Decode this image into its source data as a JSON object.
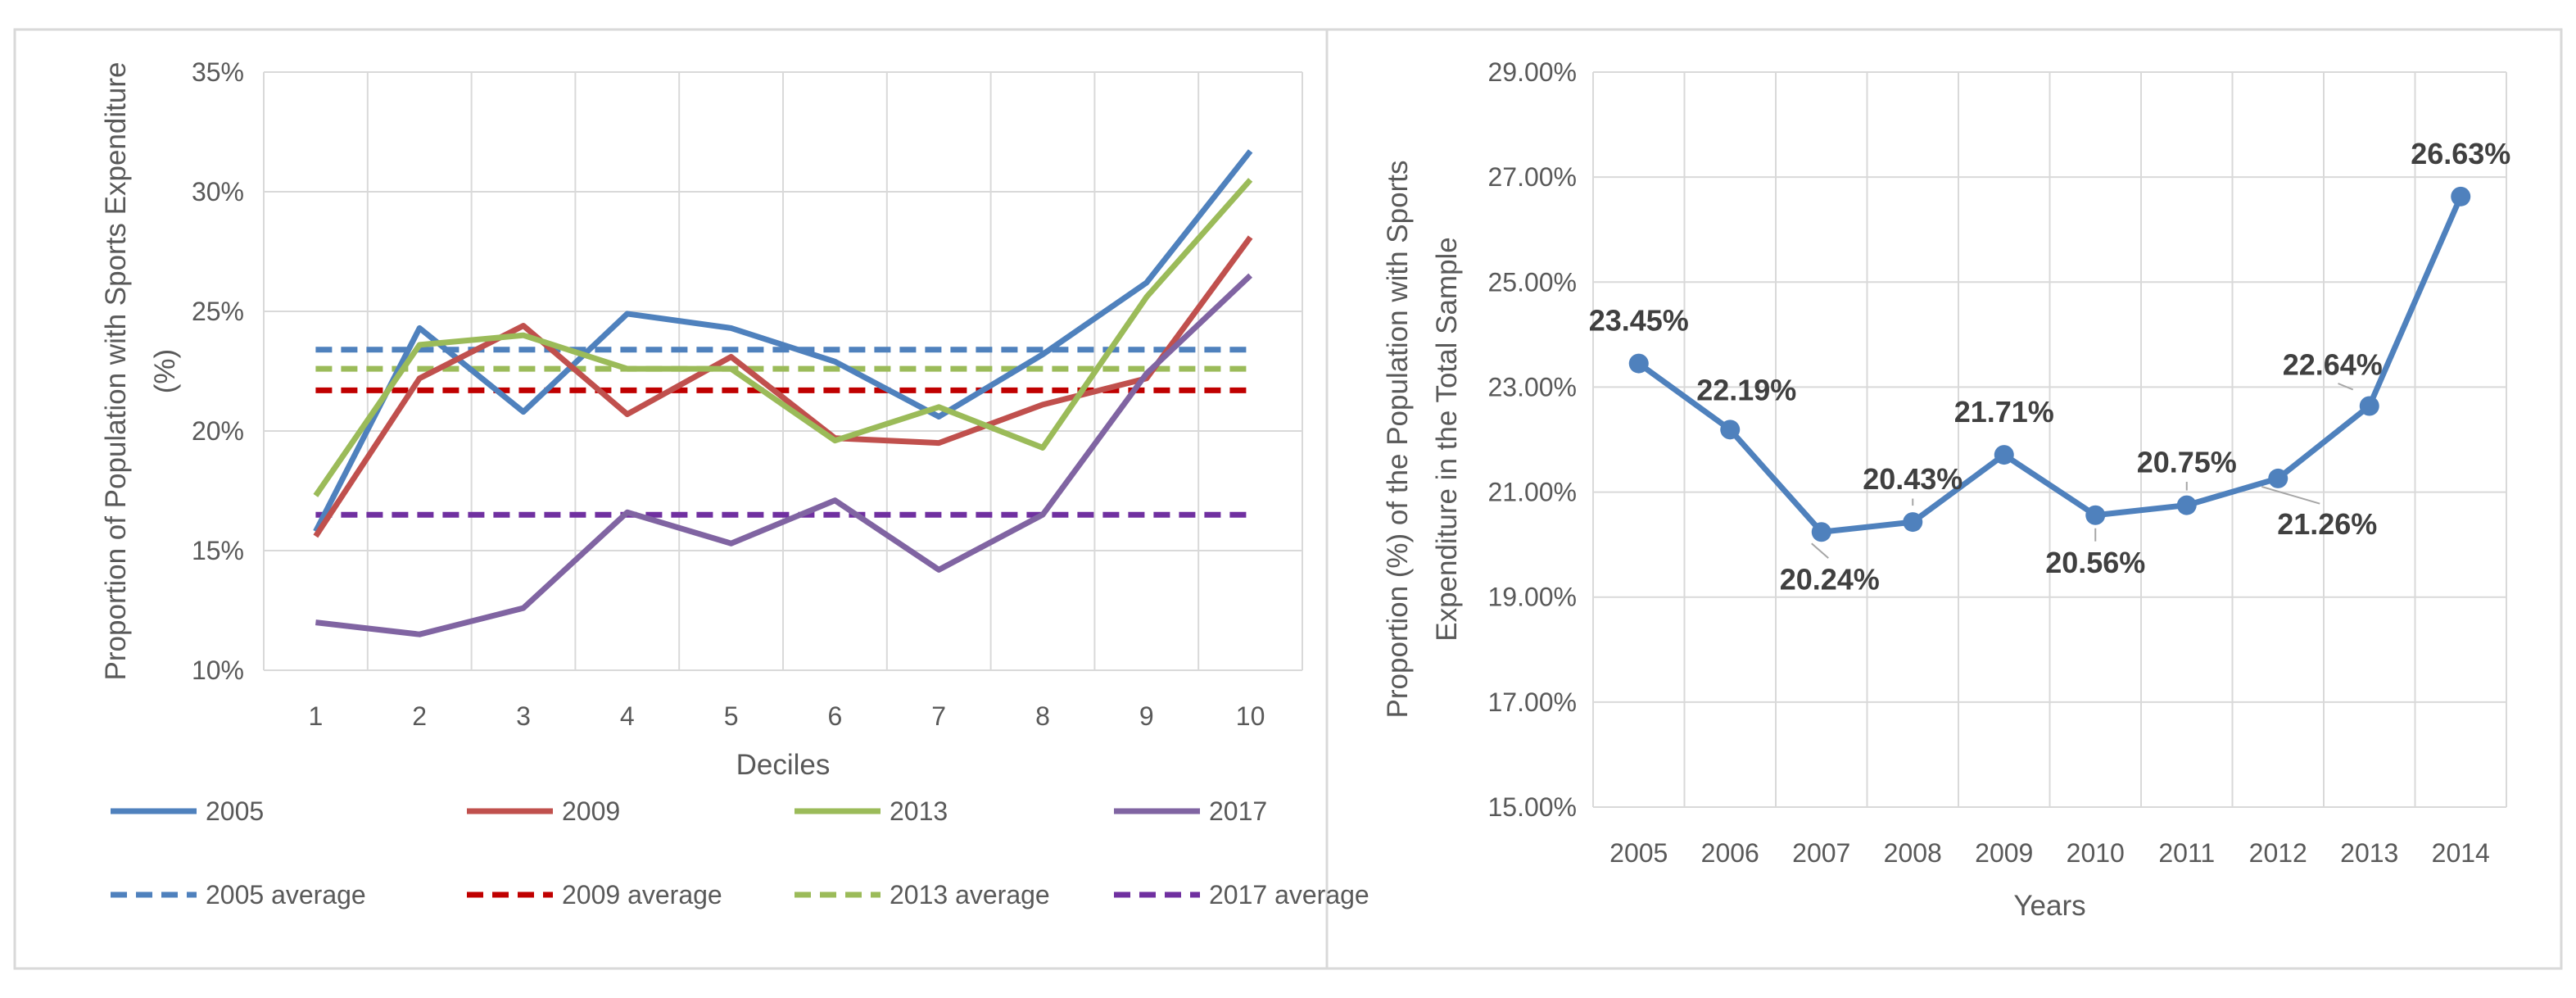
{
  "chart_data": [
    {
      "type": "line",
      "title": "",
      "xlabel": "Deciles",
      "ylabel": "Proportion of Population with Sports Expenditure (%)",
      "ylim": [
        0.1,
        0.35
      ],
      "yticks": [
        0.1,
        0.15,
        0.2,
        0.25,
        0.3,
        0.35
      ],
      "ytick_labels": [
        "10%",
        "15%",
        "20%",
        "25%",
        "30%",
        "35%"
      ],
      "categories": [
        "1",
        "2",
        "3",
        "4",
        "5",
        "6",
        "7",
        "8",
        "9",
        "10"
      ],
      "grid": true,
      "legend_position": "bottom",
      "series": [
        {
          "name": "2005",
          "color": "#4f81bd",
          "style": "solid",
          "values": [
            0.158,
            0.243,
            0.208,
            0.249,
            0.243,
            0.229,
            0.206,
            0.232,
            0.262,
            0.317
          ]
        },
        {
          "name": "2009",
          "color": "#c0504d",
          "style": "solid",
          "values": [
            0.156,
            0.222,
            0.244,
            0.207,
            0.231,
            0.197,
            0.195,
            0.211,
            0.222,
            0.281
          ]
        },
        {
          "name": "2013",
          "color": "#9bbb59",
          "style": "solid",
          "values": [
            0.173,
            0.236,
            0.24,
            0.226,
            0.226,
            0.196,
            0.21,
            0.193,
            0.256,
            0.305
          ]
        },
        {
          "name": "2017",
          "color": "#8064a2",
          "style": "solid",
          "values": [
            0.12,
            0.115,
            0.126,
            0.166,
            0.153,
            0.171,
            0.142,
            0.165,
            0.224,
            0.265
          ]
        },
        {
          "name": "2005 average",
          "color": "#4f81bd",
          "style": "dashed",
          "values": [
            0.234,
            0.234,
            0.234,
            0.234,
            0.234,
            0.234,
            0.234,
            0.234,
            0.234,
            0.234
          ]
        },
        {
          "name": "2009 average",
          "color": "#c00000",
          "style": "dashed",
          "values": [
            0.217,
            0.217,
            0.217,
            0.217,
            0.217,
            0.217,
            0.217,
            0.217,
            0.217,
            0.217
          ]
        },
        {
          "name": "2013 average",
          "color": "#9bbb59",
          "style": "dashed",
          "values": [
            0.226,
            0.226,
            0.226,
            0.226,
            0.226,
            0.226,
            0.226,
            0.226,
            0.226,
            0.226
          ]
        },
        {
          "name": "2017 average",
          "color": "#7030a0",
          "style": "dashed",
          "values": [
            0.165,
            0.165,
            0.165,
            0.165,
            0.165,
            0.165,
            0.165,
            0.165,
            0.165,
            0.165
          ]
        }
      ]
    },
    {
      "type": "line",
      "title": "",
      "xlabel": "Years",
      "ylabel": "Proportion (%) of the Population with Sports Expenditure in the Total Sample",
      "ylim": [
        15.0,
        29.0
      ],
      "yticks": [
        15,
        17,
        19,
        21,
        23,
        25,
        27,
        29
      ],
      "ytick_labels": [
        "15.00%",
        "17.00%",
        "19.00%",
        "21.00%",
        "23.00%",
        "25.00%",
        "27.00%",
        "29.00%"
      ],
      "categories": [
        "2005",
        "2006",
        "2007",
        "2008",
        "2009",
        "2010",
        "2011",
        "2012",
        "2013",
        "2014"
      ],
      "grid": true,
      "series": [
        {
          "name": "Proportion",
          "color": "#4f81bd",
          "values": [
            23.45,
            22.19,
            20.24,
            20.43,
            21.71,
            20.56,
            20.75,
            21.26,
            22.64,
            26.63
          ],
          "data_labels": [
            "23.45%",
            "22.19%",
            "20.24%",
            "20.43%",
            "21.71%",
            "20.56%",
            "20.75%",
            "21.26%",
            "22.64%",
            "26.63%"
          ]
        }
      ]
    }
  ]
}
